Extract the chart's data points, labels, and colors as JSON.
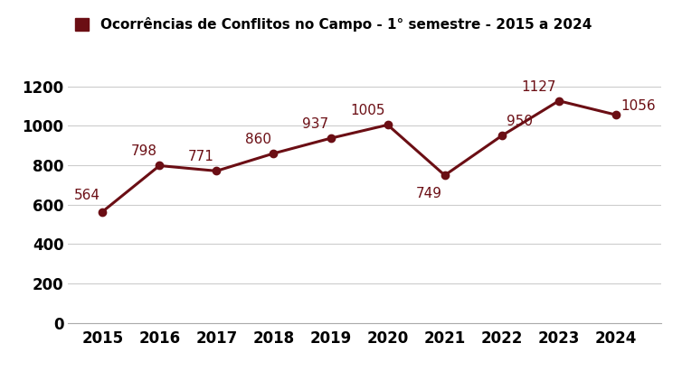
{
  "years": [
    2015,
    2016,
    2017,
    2018,
    2019,
    2020,
    2021,
    2022,
    2023,
    2024
  ],
  "values": [
    564,
    798,
    771,
    860,
    937,
    1005,
    749,
    950,
    1127,
    1056
  ],
  "line_color": "#6B0E14",
  "marker_color": "#6B0E14",
  "legend_label": "Ocorrências de Conflitos no Campo - 1° semestre - 2015 a 2024",
  "legend_square_color": "#6B0E14",
  "background_color": "#ffffff",
  "ylim": [
    0,
    1300
  ],
  "yticks": [
    0,
    200,
    400,
    600,
    800,
    1000,
    1200
  ],
  "grid_color": "#cccccc",
  "label_fontsize": 11,
  "legend_fontsize": 11,
  "tick_fontsize": 12,
  "line_width": 2.2,
  "marker_size": 6
}
